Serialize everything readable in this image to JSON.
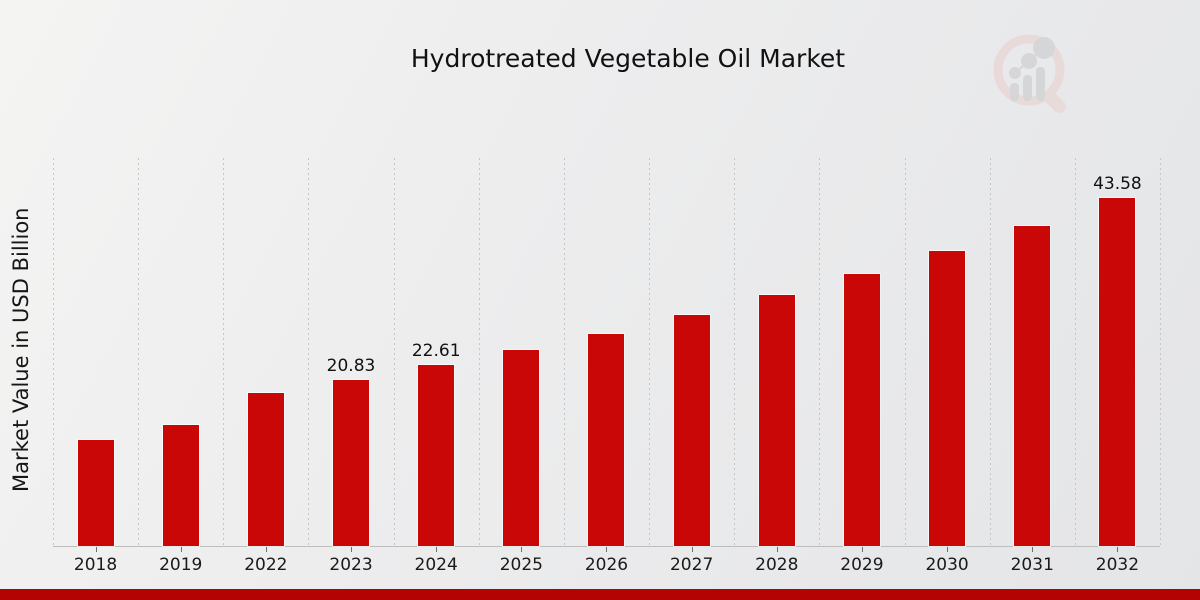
{
  "title": "Hydrotreated Vegetable Oil Market",
  "y_axis_label": "Market Value in USD Billion",
  "colors": {
    "bar": "#c90707",
    "banner": "#b30303",
    "grid": "#c5c5c6",
    "text": "#111111",
    "watermark_ring": "#e9cecb",
    "watermark_bars": "#c7c7c9"
  },
  "watermark_name": "magnifier-bar-chart-logo",
  "chart_data": {
    "type": "bar",
    "title": "Hydrotreated Vegetable Oil Market",
    "xlabel": "",
    "ylabel": "Market Value in USD Billion",
    "categories": [
      "2018",
      "2019",
      "2022",
      "2023",
      "2024",
      "2025",
      "2026",
      "2027",
      "2028",
      "2029",
      "2030",
      "2031",
      "2032"
    ],
    "values": [
      13.3,
      15.2,
      19.2,
      20.83,
      22.61,
      24.5,
      26.6,
      28.9,
      31.4,
      34.1,
      37.0,
      40.1,
      43.58
    ],
    "bar_labels": [
      "",
      "",
      "",
      "20.83",
      "22.61",
      "",
      "",
      "",
      "",
      "",
      "",
      "",
      "43.58"
    ],
    "unit": "USD Billion",
    "ylim": [
      0,
      48.6
    ],
    "grid": "vertical-dotted-category-boundaries",
    "legend": "none",
    "bar_color": "#c90707"
  }
}
